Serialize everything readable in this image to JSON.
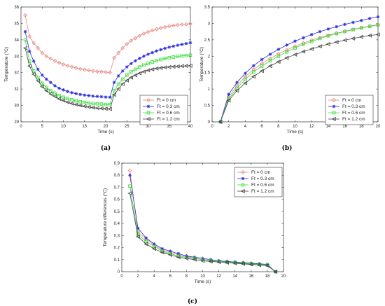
{
  "chart_data": [
    {
      "panel": "(a)",
      "type": "line",
      "xlabel": "Time (s)",
      "ylabel": "Temperature (°C)",
      "xlim": [
        0,
        40
      ],
      "ylim": [
        29,
        36
      ],
      "xticks": [
        0,
        5,
        10,
        15,
        20,
        25,
        30,
        35,
        40
      ],
      "yticks": [
        29,
        30,
        31,
        32,
        33,
        34,
        35,
        36
      ],
      "grid": false,
      "legend_position": "bottom-right",
      "x": [
        1,
        2,
        3,
        4,
        5,
        6,
        7,
        8,
        9,
        10,
        11,
        12,
        13,
        14,
        15,
        16,
        17,
        18,
        19,
        20,
        21,
        22,
        23,
        24,
        25,
        26,
        27,
        28,
        29,
        30,
        31,
        32,
        33,
        34,
        35,
        36,
        37,
        38,
        39,
        40
      ],
      "series": [
        {
          "name": "Ft = 0 cm",
          "color": "#e8877f",
          "marker": "diamond",
          "values": [
            35.5,
            34.2,
            33.8,
            33.5,
            33.2,
            33.0,
            32.85,
            32.72,
            32.6,
            32.5,
            32.42,
            32.35,
            32.29,
            32.23,
            32.18,
            32.14,
            32.1,
            32.07,
            32.05,
            32.03,
            32.0,
            32.9,
            33.2,
            33.5,
            33.75,
            33.95,
            34.1,
            34.25,
            34.38,
            34.48,
            34.57,
            34.65,
            34.72,
            34.78,
            34.83,
            34.87,
            34.9,
            34.93,
            34.95,
            34.97
          ]
        },
        {
          "name": "Ft = 0.3 cm",
          "color": "#2b2be0",
          "marker": "star",
          "values": [
            34.5,
            33.3,
            32.7,
            32.2,
            31.85,
            31.6,
            31.4,
            31.2,
            31.05,
            30.95,
            30.85,
            30.78,
            30.72,
            30.67,
            30.63,
            30.6,
            30.57,
            30.55,
            30.53,
            30.51,
            30.5,
            31.4,
            31.8,
            32.1,
            32.35,
            32.55,
            32.72,
            32.87,
            33.0,
            33.12,
            33.22,
            33.32,
            33.4,
            33.48,
            33.55,
            33.61,
            33.67,
            33.72,
            33.77,
            33.82
          ]
        },
        {
          "name": "Ft = 0.6 cm",
          "color": "#33dd33",
          "marker": "square",
          "values": [
            34.0,
            32.7,
            32.1,
            31.7,
            31.35,
            31.1,
            30.9,
            30.75,
            30.6,
            30.5,
            30.42,
            30.35,
            30.28,
            30.23,
            30.19,
            30.15,
            30.12,
            30.1,
            30.08,
            30.06,
            30.05,
            30.9,
            31.3,
            31.6,
            31.85,
            32.05,
            32.2,
            32.34,
            32.46,
            32.56,
            32.65,
            32.73,
            32.8,
            32.86,
            32.91,
            32.95,
            32.99,
            33.02,
            33.04,
            33.06
          ]
        },
        {
          "name": "Ft = 1.2 cm",
          "color": "#444444",
          "marker": "triangle-left",
          "values": [
            33.5,
            32.4,
            31.9,
            31.5,
            31.15,
            30.9,
            30.7,
            30.55,
            30.4,
            30.3,
            30.2,
            30.12,
            30.05,
            30.0,
            29.95,
            29.91,
            29.87,
            29.84,
            29.82,
            29.8,
            29.78,
            30.65,
            31.0,
            31.3,
            31.52,
            31.7,
            31.84,
            31.96,
            32.06,
            32.14,
            32.2,
            32.25,
            32.29,
            32.32,
            32.34,
            32.36,
            32.38,
            32.4,
            32.41,
            32.42
          ]
        }
      ]
    },
    {
      "panel": "(b)",
      "type": "line",
      "xlabel": "Time (s)",
      "ylabel": "Temperature (°C)",
      "xlim": [
        0,
        20
      ],
      "ylim": [
        0,
        3.5
      ],
      "xticks": [
        0,
        2,
        4,
        6,
        8,
        10,
        12,
        14,
        16,
        18,
        20
      ],
      "yticks": [
        0,
        0.5,
        1,
        1.5,
        2,
        2.5,
        3,
        3.5
      ],
      "grid": false,
      "legend_position": "bottom-right",
      "x": [
        1,
        2,
        3,
        4,
        5,
        6,
        7,
        8,
        9,
        10,
        11,
        12,
        13,
        14,
        15,
        16,
        17,
        18,
        19,
        20
      ],
      "series": [
        {
          "name": "Ft = 0 cm",
          "color": "#e8877f",
          "marker": "diamond",
          "values": [
            0,
            0.76,
            1.1,
            1.38,
            1.6,
            1.78,
            1.93,
            2.07,
            2.19,
            2.3,
            2.4,
            2.49,
            2.57,
            2.64,
            2.7,
            2.76,
            2.82,
            2.87,
            2.92,
            2.96
          ]
        },
        {
          "name": "Ft = 0.3 cm",
          "color": "#2b2be0",
          "marker": "star",
          "values": [
            0,
            0.84,
            1.2,
            1.48,
            1.71,
            1.9,
            2.06,
            2.21,
            2.34,
            2.46,
            2.56,
            2.66,
            2.75,
            2.83,
            2.9,
            2.97,
            3.03,
            3.09,
            3.15,
            3.2
          ]
        },
        {
          "name": "Ft = 0.6 cm",
          "color": "#33dd33",
          "marker": "square",
          "values": [
            0,
            0.7,
            1.02,
            1.3,
            1.52,
            1.7,
            1.86,
            2.0,
            2.13,
            2.25,
            2.36,
            2.45,
            2.54,
            2.62,
            2.69,
            2.75,
            2.81,
            2.86,
            2.91,
            2.95
          ]
        },
        {
          "name": "Ft = 1.2 cm",
          "color": "#444444",
          "marker": "triangle-left",
          "values": [
            0,
            0.65,
            0.95,
            1.18,
            1.38,
            1.55,
            1.7,
            1.83,
            1.95,
            2.05,
            2.14,
            2.22,
            2.3,
            2.37,
            2.43,
            2.49,
            2.54,
            2.59,
            2.63,
            2.66
          ]
        }
      ]
    },
    {
      "panel": "(c)",
      "type": "line",
      "xlabel": "Time (s)",
      "ylabel": "Temperature differences (°C)",
      "xlim": [
        0,
        20
      ],
      "ylim": [
        0,
        0.9
      ],
      "xticks": [
        0,
        2,
        4,
        6,
        8,
        10,
        12,
        14,
        16,
        18,
        20
      ],
      "yticks": [
        0,
        0.1,
        0.2,
        0.3,
        0.4,
        0.5,
        0.6,
        0.7,
        0.8,
        0.9
      ],
      "grid": false,
      "legend_position": "top-right",
      "x": [
        1,
        2,
        3,
        4,
        5,
        6,
        7,
        8,
        9,
        10,
        11,
        12,
        13,
        14,
        15,
        16,
        17,
        18,
        19
      ],
      "series": [
        {
          "name": "Ft = 0 cm",
          "color": "#e8877f",
          "marker": "diamond",
          "values": [
            0.84,
            0.33,
            0.27,
            0.22,
            0.18,
            0.16,
            0.14,
            0.13,
            0.11,
            0.1,
            0.095,
            0.09,
            0.085,
            0.08,
            0.075,
            0.07,
            0.065,
            0.06,
            0
          ]
        },
        {
          "name": "Ft = 0.3 cm",
          "color": "#2b2be0",
          "marker": "star",
          "values": [
            0.8,
            0.36,
            0.28,
            0.23,
            0.19,
            0.17,
            0.15,
            0.13,
            0.12,
            0.11,
            0.1,
            0.09,
            0.085,
            0.08,
            0.075,
            0.07,
            0.065,
            0.06,
            0
          ]
        },
        {
          "name": "Ft = 0.6 cm",
          "color": "#33dd33",
          "marker": "square",
          "values": [
            0.71,
            0.31,
            0.25,
            0.21,
            0.17,
            0.15,
            0.13,
            0.12,
            0.11,
            0.1,
            0.09,
            0.085,
            0.08,
            0.075,
            0.07,
            0.065,
            0.06,
            0.055,
            0
          ]
        },
        {
          "name": "Ft = 1.2 cm",
          "color": "#444444",
          "marker": "triangle-left",
          "values": [
            0.65,
            0.29,
            0.23,
            0.19,
            0.16,
            0.14,
            0.12,
            0.11,
            0.1,
            0.09,
            0.085,
            0.08,
            0.075,
            0.07,
            0.065,
            0.06,
            0.055,
            0.05,
            0
          ]
        }
      ]
    }
  ]
}
